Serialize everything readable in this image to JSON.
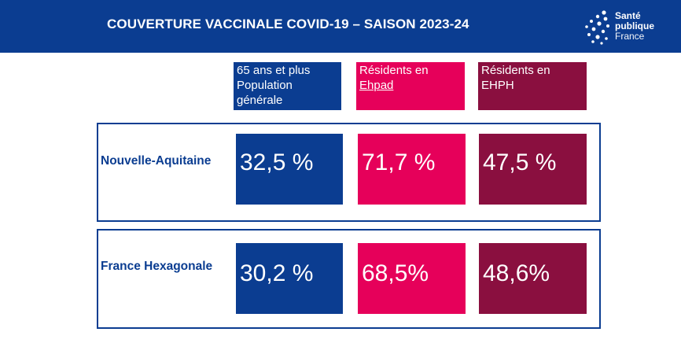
{
  "header": {
    "title": "COUVERTURE VACCINALE COVID-19 – SAISON 2023-24",
    "logo": {
      "line1": "Santé",
      "line2": "publique",
      "line3": "France"
    }
  },
  "colors": {
    "header_bg": "#0b3d91",
    "blue": "#0b3d91",
    "pink": "#e6005a",
    "burgundy": "#8a0f3f"
  },
  "columns": [
    {
      "lines": [
        "65 ans et plus",
        "Population",
        "générale"
      ]
    },
    {
      "lines": [
        "Résidents en",
        "Ehpad"
      ]
    },
    {
      "lines": [
        "Résidents en",
        "EHPH"
      ]
    }
  ],
  "rows": [
    {
      "label": "Nouvelle-Aquitaine",
      "values": [
        "32,5 %",
        "71,7 %",
        "47,5 %"
      ]
    },
    {
      "label": "France Hexagonale",
      "values": [
        "30,2 %",
        "68,5%",
        "48,6%"
      ]
    }
  ]
}
